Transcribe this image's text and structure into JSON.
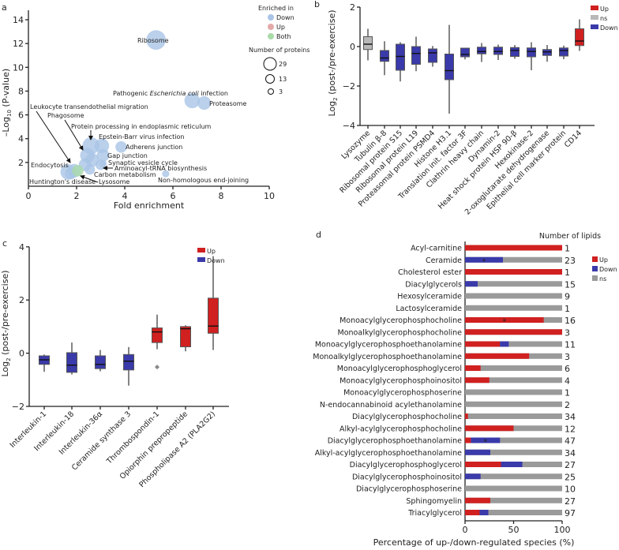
{
  "colors": {
    "up": "#d02020",
    "down": "#3a3aaa",
    "ns": "#9a9a9a",
    "ns_box": "#b8b8b8",
    "bubble_down": "#a9c4e6",
    "bubble_up": "#e3a9a9",
    "bubble_both": "#a9dba9"
  },
  "chart_data": [
    {
      "panel": "a",
      "type": "scatter",
      "xlabel": "Fold enrichment",
      "ylabel_prefix": "–Log",
      "ylabel_sub": "10",
      "ylabel_suffix": " (P-value)",
      "xlim": [
        0,
        10
      ],
      "ylim": [
        0,
        14
      ],
      "xticks": [
        "0",
        "2",
        "4",
        "6",
        "8",
        "10"
      ],
      "yticks": [
        "2",
        "4",
        "6",
        "8",
        "10",
        "12",
        "14"
      ],
      "legend": {
        "title": "Enriched in",
        "items": [
          "Down",
          "Up",
          "Both"
        ],
        "size_title": "Number of proteins",
        "sizes": [
          "29",
          "13",
          "3"
        ]
      },
      "points": [
        {
          "x": 5.3,
          "y": 12.3,
          "n": 29,
          "group": "Down"
        },
        {
          "x": 6.8,
          "y": 7.2,
          "n": 18,
          "group": "Down"
        },
        {
          "x": 7.3,
          "y": 7.0,
          "n": 14,
          "group": "Down"
        },
        {
          "x": 2.6,
          "y": 3.4,
          "n": 22,
          "group": "Down"
        },
        {
          "x": 3.05,
          "y": 3.4,
          "n": 16,
          "group": "Down"
        },
        {
          "x": 3.85,
          "y": 3.3,
          "n": 10,
          "group": "Down"
        },
        {
          "x": 3.1,
          "y": 2.6,
          "n": 12,
          "group": "Down"
        },
        {
          "x": 2.45,
          "y": 2.6,
          "n": 16,
          "group": "Down"
        },
        {
          "x": 2.65,
          "y": 2.2,
          "n": 14,
          "group": "Down"
        },
        {
          "x": 2.35,
          "y": 1.8,
          "n": 12,
          "group": "Down"
        },
        {
          "x": 3.0,
          "y": 1.8,
          "n": 8,
          "group": "Down"
        },
        {
          "x": 3.1,
          "y": 1.9,
          "n": 4,
          "group": "Down"
        },
        {
          "x": 2.55,
          "y": 1.4,
          "n": 8,
          "group": "Down"
        },
        {
          "x": 1.65,
          "y": 1.2,
          "n": 18,
          "group": "Down"
        },
        {
          "x": 1.9,
          "y": 1.3,
          "n": 14,
          "group": "Down"
        },
        {
          "x": 1.75,
          "y": 1.05,
          "n": 10,
          "group": "Down"
        },
        {
          "x": 2.05,
          "y": 1.3,
          "n": 10,
          "group": "Both"
        },
        {
          "x": 5.7,
          "y": 1.05,
          "n": 4,
          "group": "Down"
        }
      ],
      "annotations": [
        "Ribosome",
        "Proteasome",
        "Leukocyte transendothelial migration",
        "Phagosome",
        "Protein processing in endoplasmic reticulum",
        "Epstein-Barr virus infection",
        "Adherens junction",
        "Gap junction",
        "Synaptic vesicle cycle",
        "Aminoacyl-tRNA biosynthesis",
        "Carbon metabolism",
        "Non-homologous end-joining",
        "Endocytosis",
        "Lysosome",
        "Huntington's disease"
      ],
      "annotation_pathogenic": {
        "pre": "Pathogenic ",
        "italic": "Escherichia coli",
        "post": " infection"
      }
    },
    {
      "panel": "b",
      "type": "box",
      "ylabel_prefix": "Log",
      "ylabel_sub": "2",
      "ylabel_suffix": " (post-/pre-exercise)",
      "ylim": [
        -4,
        2
      ],
      "yticks": [
        "−4",
        "−2",
        "0",
        "2"
      ],
      "legend": [
        "Up",
        "ns",
        "Down"
      ],
      "boxes": [
        {
          "name": "Lysozyme",
          "status": "ns",
          "min": -0.7,
          "q1": -0.15,
          "median": 0.12,
          "q3": 0.5,
          "max": 0.9
        },
        {
          "name": "Tubulin β-8",
          "status": "Down",
          "min": -1.45,
          "q1": -0.75,
          "median": -0.58,
          "q3": -0.2,
          "max": 0.27
        },
        {
          "name": "Ribosomal protein S15",
          "status": "Down",
          "min": -1.77,
          "q1": -1.2,
          "median": -0.5,
          "q3": 0.12,
          "max": 0.22
        },
        {
          "name": "Ribosomal protein L19",
          "status": "Down",
          "min": -1.25,
          "q1": -0.9,
          "median": -0.35,
          "q3": 0.0,
          "max": 0.5
        },
        {
          "name": "Proteasomal protein PSMD4",
          "status": "Down",
          "min": -1.02,
          "q1": -0.8,
          "median": -0.32,
          "q3": -0.12,
          "max": 0.03
        },
        {
          "name": "Histone H3.1",
          "status": "Down",
          "min": -3.4,
          "q1": -1.68,
          "median": -1.22,
          "q3": -0.38,
          "max": 1.1
        },
        {
          "name": "Translation init. factor 3F",
          "status": "Down",
          "min": -0.65,
          "q1": -0.52,
          "median": -0.4,
          "q3": -0.08,
          "max": -0.08
        },
        {
          "name": "Clathrin heavy chain",
          "status": "Down",
          "min": -0.78,
          "q1": -0.37,
          "median": -0.25,
          "q3": -0.03,
          "max": 0.18
        },
        {
          "name": "Dynamin-2",
          "status": "Down",
          "min": -0.68,
          "q1": -0.4,
          "median": -0.25,
          "q3": -0.03,
          "max": 0.1
        },
        {
          "name": "Heat shock protein HSP 90-β",
          "status": "Down",
          "min": -0.62,
          "q1": -0.5,
          "median": -0.2,
          "q3": -0.05,
          "max": 0.08
        },
        {
          "name": "Hexokinase-2",
          "status": "Down",
          "min": -1.2,
          "q1": -0.52,
          "median": -0.25,
          "q3": -0.07,
          "max": 0.22
        },
        {
          "name": "2-oxoglutarate dehydrogenase",
          "status": "Down",
          "min": -0.77,
          "q1": -0.45,
          "median": -0.27,
          "q3": -0.15,
          "max": 0.08
        },
        {
          "name": "Epithelial cell marker protein",
          "status": "Down",
          "min": -0.64,
          "q1": -0.48,
          "median": -0.2,
          "q3": -0.07,
          "max": 0.05
        },
        {
          "name": "CD14",
          "status": "Up",
          "min": -0.22,
          "q1": 0.05,
          "median": 0.28,
          "q3": 0.9,
          "max": 1.38
        }
      ]
    },
    {
      "panel": "c",
      "type": "box",
      "ylabel_prefix": "Log",
      "ylabel_sub": "2",
      "ylabel_suffix": " (post-/pre-exercise)",
      "ylim": [
        -2,
        4
      ],
      "yticks": [
        "−2",
        "0",
        "2",
        "4"
      ],
      "legend": [
        "Up",
        "Down"
      ],
      "boxes": [
        {
          "name": "Interleukin-1",
          "status": "Down",
          "min": -0.7,
          "q1": -0.42,
          "median": -0.25,
          "q3": -0.1,
          "max": -0.05
        },
        {
          "name": "Interleukin-18",
          "status": "Down",
          "min": -0.8,
          "q1": -0.72,
          "median": -0.45,
          "q3": 0.02,
          "max": 0.4
        },
        {
          "name": "Interleukin-36α",
          "status": "Down",
          "min": -0.68,
          "q1": -0.58,
          "median": -0.42,
          "q3": -0.1,
          "max": 0.12
        },
        {
          "name": "Ceramide synthase 3",
          "status": "Down",
          "min": -1.22,
          "q1": -0.63,
          "median": -0.3,
          "q3": -0.05,
          "max": 0.23
        },
        {
          "name": "Thrombospondin-1",
          "status": "Up",
          "min": 0.15,
          "q1": 0.4,
          "median": 0.8,
          "q3": 0.95,
          "max": 1.45,
          "outliers": [
            -0.52
          ]
        },
        {
          "name": "Opiorphin prepropeptide",
          "status": "Up",
          "min": 0.07,
          "q1": 0.24,
          "median": 0.92,
          "q3": 1.0,
          "max": 1.05
        },
        {
          "name": "Phospholipase A2 (PLA2G2)",
          "status": "Up",
          "min": 0.12,
          "q1": 0.75,
          "median": 1.02,
          "q3": 2.07,
          "max": 3.65
        }
      ]
    },
    {
      "panel": "d",
      "type": "bar",
      "stacked": true,
      "orientation": "horizontal",
      "xlabel": "Percentage of up-/down-regulated species (%)",
      "xlim": [
        0,
        100
      ],
      "xticks": [
        "0",
        "50",
        "100"
      ],
      "count_title": "Number of lipids",
      "legend": [
        "Up",
        "Down",
        "ns"
      ],
      "star": "*",
      "rows": [
        {
          "name": "Acyl-carnitine",
          "up": 100,
          "down": 0,
          "n": "1"
        },
        {
          "name": "Ceramide",
          "up": 0,
          "down": 39,
          "n": "23",
          "star_on": "down"
        },
        {
          "name": "Cholesterol ester",
          "up": 100,
          "down": 0,
          "n": "1"
        },
        {
          "name": "Diacylglycerols",
          "up": 0,
          "down": 13,
          "n": "15"
        },
        {
          "name": "Hexosylceramide",
          "up": 0,
          "down": 0,
          "n": "9"
        },
        {
          "name": "Lactosylceramide",
          "up": 0,
          "down": 0,
          "n": "1"
        },
        {
          "name": "Monoacylglycerophosphocholine",
          "up": 81,
          "down": 0,
          "n": "16",
          "star_on": "up"
        },
        {
          "name": "Monoalkylglycerophosphocholine",
          "up": 100,
          "down": 0,
          "n": "3"
        },
        {
          "name": "Monoacylglycerophosphoethanolamine",
          "up": 36,
          "down": 9,
          "n": "11"
        },
        {
          "name": "Monoalkylglycerophosphoethanolamine",
          "up": 66,
          "down": 0,
          "n": "3"
        },
        {
          "name": "Monoacylglycerophosphoglycerol",
          "up": 16,
          "down": 0,
          "n": "6"
        },
        {
          "name": "Monoacylglycerophosphoinositol",
          "up": 25,
          "down": 0,
          "n": "4"
        },
        {
          "name": "Monoacylglycerophosphoserine",
          "up": 0,
          "down": 0,
          "n": "1"
        },
        {
          "name": "N-endocannabinoid acylethanolamine",
          "up": 0,
          "down": 0,
          "n": "2"
        },
        {
          "name": "Diacylglycerophosphocholine",
          "up": 3,
          "down": 0,
          "n": "34"
        },
        {
          "name": "Alkyl-acylglycerophosphocholine",
          "up": 50,
          "down": 0,
          "n": "12"
        },
        {
          "name": "Diacylglycerophosphoethanolamine",
          "up": 6,
          "down": 30,
          "n": "47",
          "star_on": "down"
        },
        {
          "name": "Alkyl-acylglycerophosphoethanolamine",
          "up": 0,
          "down": 26,
          "n": "34"
        },
        {
          "name": "Diacylglycerophosphoglycerol",
          "up": 37,
          "down": 22,
          "n": "27"
        },
        {
          "name": "Diacylglycerophosphoinositol",
          "up": 0,
          "down": 16,
          "n": "25"
        },
        {
          "name": "Diacylglycerophosphoserine",
          "up": 0,
          "down": 0,
          "n": "10"
        },
        {
          "name": "Sphingomyelin",
          "up": 26,
          "down": 0,
          "n": "27"
        },
        {
          "name": "Triacylglycerol",
          "up": 15,
          "down": 9,
          "n": "97"
        }
      ]
    }
  ],
  "panel_letters": [
    "a",
    "b",
    "c",
    "d"
  ]
}
